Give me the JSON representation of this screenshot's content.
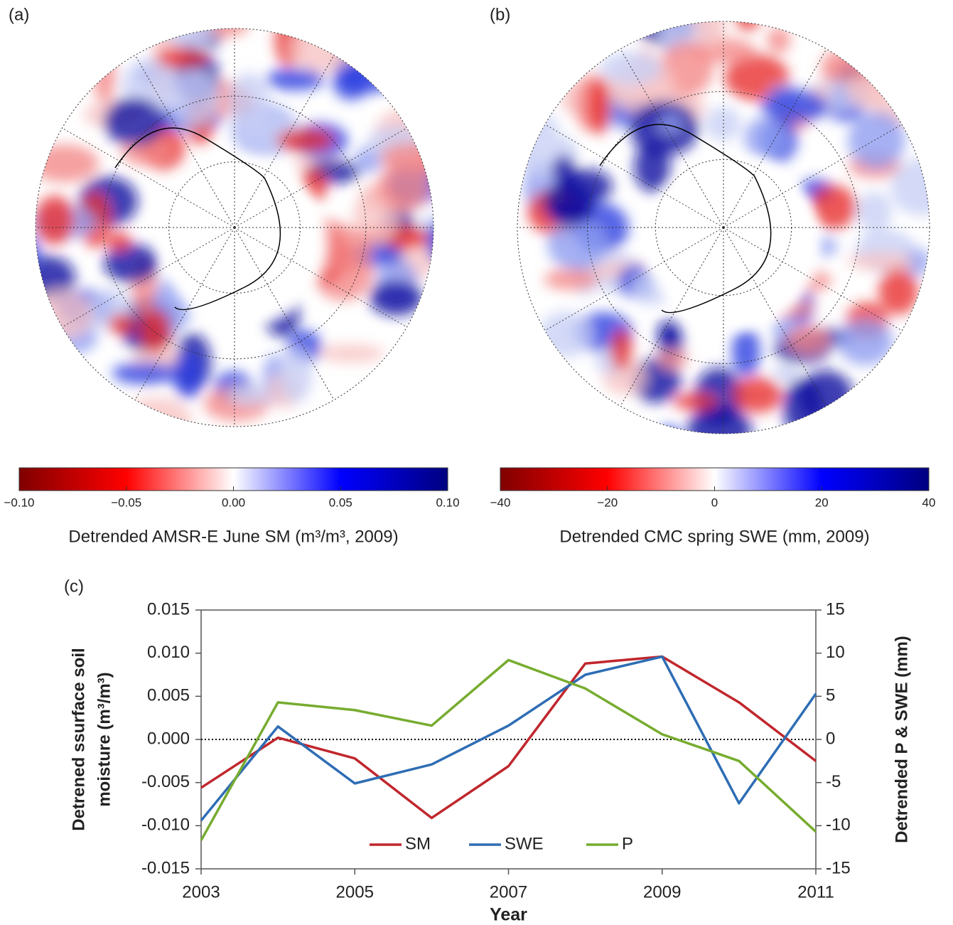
{
  "chart_data": [
    {
      "type": "colorbar",
      "panel_label": "(a)",
      "label": "Detrended AMSR-E June SM (m³/m³, 2009)",
      "colormap": [
        "#800000",
        "#ff0000",
        "#ffffff",
        "#0000ff",
        "#000080"
      ],
      "xlim": [
        -0.1,
        0.1
      ],
      "xticks": [
        {
          "value": -0.1,
          "label": "−0.10"
        },
        {
          "value": -0.05,
          "label": "−0.05"
        },
        {
          "value": 0,
          "label": "0.00"
        },
        {
          "value": 0.05,
          "label": "0.05"
        },
        {
          "value": 0.1,
          "label": "0.10"
        }
      ]
    },
    {
      "type": "colorbar",
      "panel_label": "(b)",
      "label": "Detrended CMC spring SWE (mm, 2009)",
      "colormap": [
        "#800000",
        "#ff0000",
        "#ffffff",
        "#0000ff",
        "#000080"
      ],
      "xlim": [
        -40,
        40
      ],
      "xticks": [
        {
          "value": -40,
          "label": "−40"
        },
        {
          "value": -20,
          "label": "−20"
        },
        0,
        20,
        40
      ]
    },
    {
      "type": "line",
      "panel_label": "(c)",
      "x_label": "Year",
      "y_label": [
        "Detrened ssurface soil",
        "moisture (m³/m³)"
      ],
      "y2_label": "Detrended P & SWE (mm)",
      "x": [
        2003,
        2004,
        2005,
        2006,
        2007,
        2008,
        2009,
        2010,
        2011
      ],
      "xlim": [
        2003,
        2011
      ],
      "xticks": [
        2003,
        2005,
        2007,
        2009,
        2011
      ],
      "ylim": [
        -0.015,
        0.015
      ],
      "yticks": [
        {
          "value": -0.015,
          "label": "-0.015"
        },
        {
          "value": -0.01,
          "label": "-0.010"
        },
        {
          "value": -0.005,
          "label": "-0.005"
        },
        {
          "value": 0,
          "label": "0.000"
        },
        {
          "value": 0.005,
          "label": "0.005"
        },
        {
          "value": 0.01,
          "label": "0.010"
        },
        {
          "value": 0.015,
          "label": "0.015"
        }
      ],
      "y2lim": [
        -15,
        15
      ],
      "y2ticks": [
        -15,
        -10,
        -5,
        0,
        5,
        10,
        15
      ],
      "zero_line": true,
      "legend": "bottom",
      "series": [
        {
          "name": "SM",
          "color": "#c0272d",
          "values": [
            -0.0056,
            0.0002,
            -0.0022,
            -0.0091,
            -0.0031,
            0.0088,
            0.0096,
            0.0043,
            -0.0025
          ]
        },
        {
          "name": "SWE",
          "color": "#2e6db4",
          "axis": "y2",
          "values": [
            -9.4,
            1.5,
            -5.1,
            -2.9,
            1.6,
            7.5,
            9.6,
            -7.4,
            5.3
          ]
        },
        {
          "name": "P",
          "color": "#77ac30",
          "axis": "y2",
          "values": [
            -11.7,
            4.3,
            3.4,
            1.6,
            9.2,
            5.9,
            0.6,
            -2.5,
            -10.7
          ]
        }
      ]
    }
  ]
}
